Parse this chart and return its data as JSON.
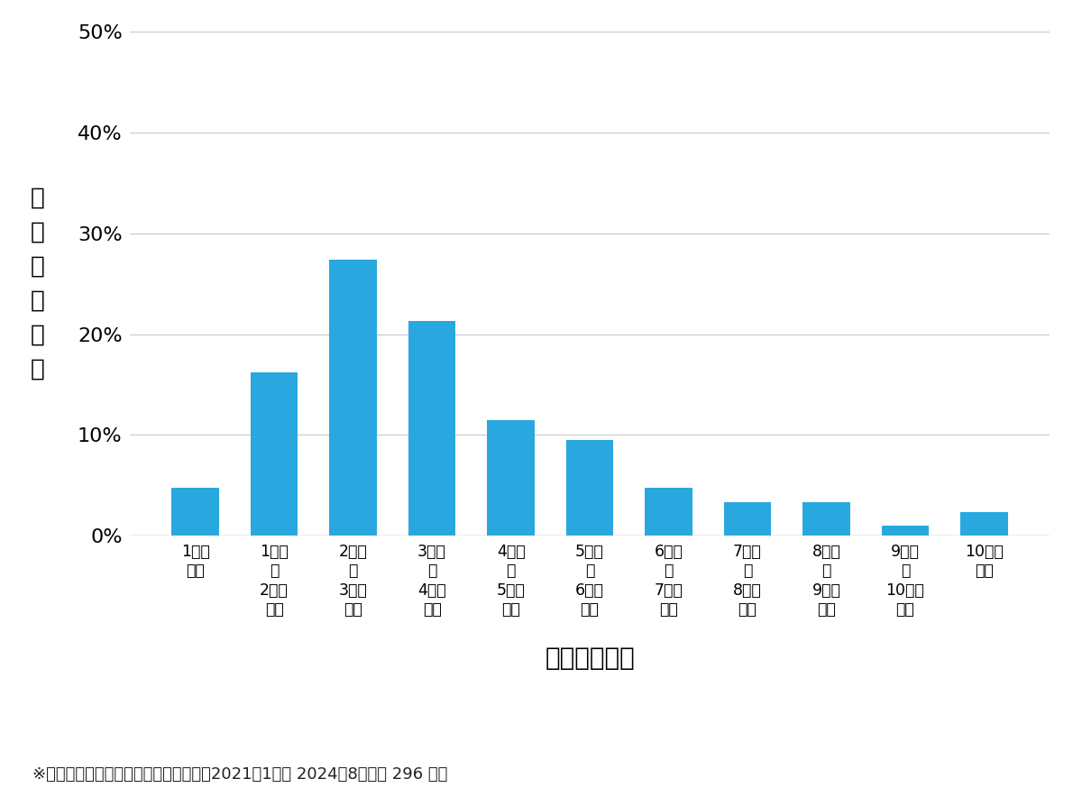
{
  "categories": [
    "1万円\n未満",
    "1万円\n～\n2万円\n未満",
    "2万円\n～\n3万円\n未満",
    "3万円\n～\n4万円\n未満",
    "4万円\n～\n5万円\n未満",
    "5万円\n～\n6万円\n未満",
    "6万円\n～\n7万円\n未満",
    "7万円\n～\n8万円\n未満",
    "8万円\n～\n9万円\n未満",
    "9万円\n～\n10万円\n未満",
    "10万円\n以上"
  ],
  "values": [
    4.73,
    16.22,
    27.36,
    21.28,
    11.49,
    9.46,
    4.73,
    3.38,
    3.38,
    1.01,
    2.36
  ],
  "bar_color": "#29A8E0",
  "ylabel_chars": [
    "費",
    "用",
    "帯",
    "の",
    "割",
    "合"
  ],
  "xlabel": "費用帯（円）",
  "footnote": "※弾社受付の案件を対象に集計（期間：2021年1月～ 2024年8月、計 296 件）",
  "yticks": [
    0,
    10,
    20,
    30,
    40,
    50
  ],
  "ylim": [
    0,
    50
  ],
  "background_color": "#ffffff",
  "grid_color": "#cccccc",
  "bar_width": 0.6,
  "tick_label_fontsize": 12.5,
  "ylabel_fontsize": 19,
  "xlabel_fontsize": 20,
  "footnote_fontsize": 13,
  "ytick_fontsize": 16
}
